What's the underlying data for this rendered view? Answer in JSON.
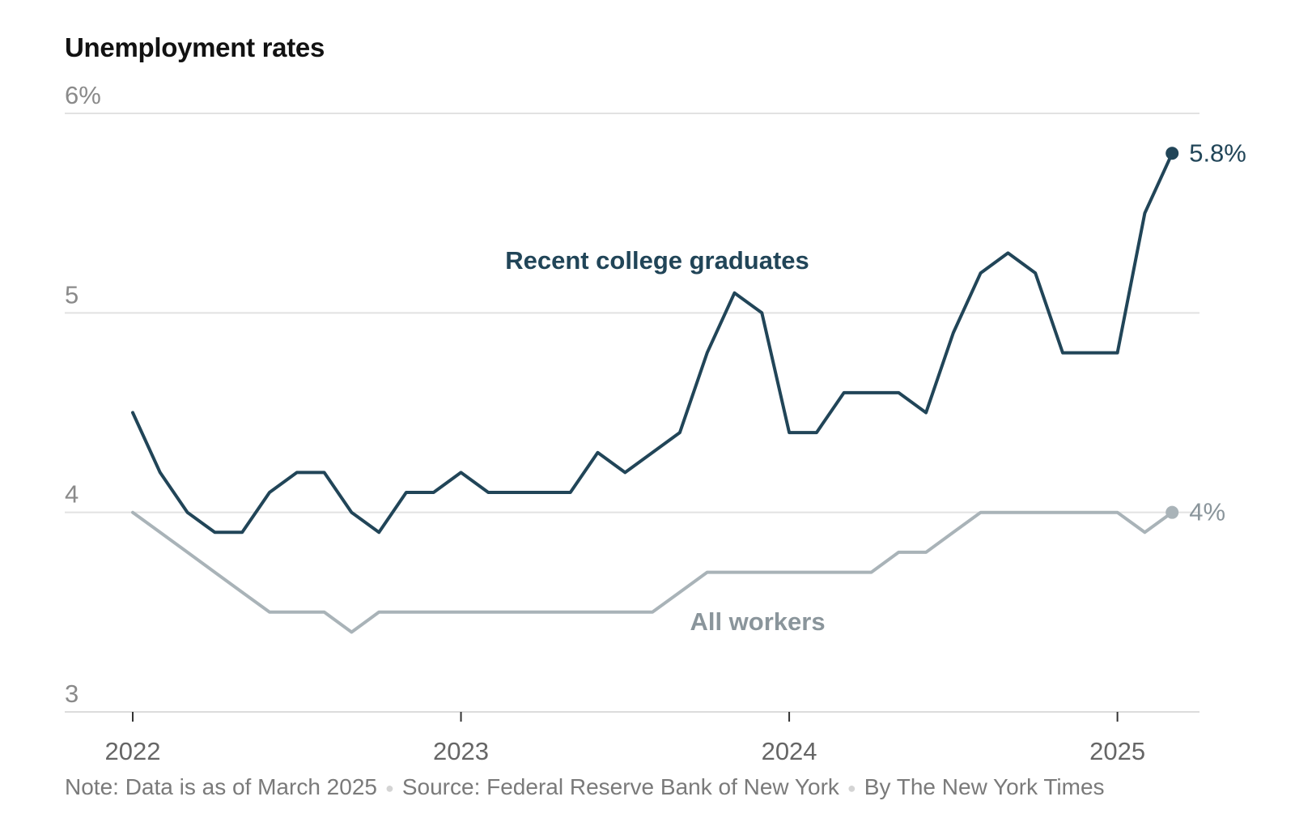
{
  "chart_data": {
    "type": "line",
    "title": "Unemployment rates",
    "xlabel": "",
    "ylabel": "",
    "x_start": "2022-01",
    "x_end": "2025-03",
    "xlim": [
      "2022-01",
      "2025-04"
    ],
    "ylim": [
      3,
      6
    ],
    "y_ticks": [
      {
        "value": 3,
        "label": "3"
      },
      {
        "value": 4,
        "label": "4"
      },
      {
        "value": 5,
        "label": "5"
      },
      {
        "value": 6,
        "label": "6%"
      }
    ],
    "x_ticks": [
      {
        "value": "2022-01",
        "label": "2022"
      },
      {
        "value": "2023-01",
        "label": "2023"
      },
      {
        "value": "2024-01",
        "label": "2024"
      },
      {
        "value": "2025-01",
        "label": "2025"
      }
    ],
    "grid": true,
    "series": [
      {
        "name": "Recent college graduates",
        "color": "#214558",
        "end_label": "5.8%",
        "values": [
          4.5,
          4.2,
          4.0,
          3.9,
          3.9,
          4.1,
          4.2,
          4.2,
          4.0,
          3.9,
          4.1,
          4.1,
          4.2,
          4.1,
          4.1,
          4.1,
          4.1,
          4.3,
          4.2,
          4.3,
          4.4,
          4.8,
          5.1,
          5.0,
          4.4,
          4.4,
          4.6,
          4.6,
          4.6,
          4.5,
          4.9,
          5.2,
          5.3,
          5.2,
          4.8,
          4.8,
          4.8,
          5.5,
          5.8
        ]
      },
      {
        "name": "All workers",
        "color": "#a9b3b8",
        "label_color": "#8a959b",
        "end_label": "4%",
        "values": [
          4.0,
          3.9,
          3.8,
          3.7,
          3.6,
          3.5,
          3.5,
          3.5,
          3.4,
          3.5,
          3.5,
          3.5,
          3.5,
          3.5,
          3.5,
          3.5,
          3.5,
          3.5,
          3.5,
          3.5,
          3.6,
          3.7,
          3.7,
          3.7,
          3.7,
          3.7,
          3.7,
          3.7,
          3.8,
          3.8,
          3.9,
          4.0,
          4.0,
          4.0,
          4.0,
          4.0,
          4.0,
          3.9,
          4.0
        ]
      }
    ],
    "footer": {
      "note": "Note: Data is as of March 2025",
      "source": "Source: Federal Reserve Bank of New York",
      "credit": "By The New York Times"
    }
  }
}
